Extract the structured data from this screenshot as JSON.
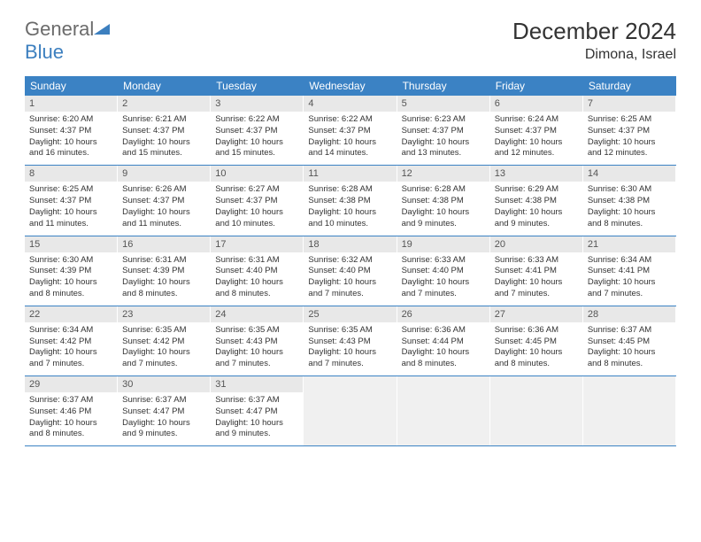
{
  "logo": {
    "part1": "General",
    "part2": "Blue"
  },
  "title": "December 2024",
  "location": "Dimona, Israel",
  "colors": {
    "header_bg": "#3b82c4",
    "header_text": "#ffffff",
    "daynum_bg": "#e8e8e8",
    "row_border": "#3b82c4",
    "text": "#333333",
    "logo_gray": "#6b6b6b",
    "logo_blue": "#3c7fbf"
  },
  "days_of_week": [
    "Sunday",
    "Monday",
    "Tuesday",
    "Wednesday",
    "Thursday",
    "Friday",
    "Saturday"
  ],
  "weeks": [
    [
      {
        "n": "1",
        "sr": "Sunrise: 6:20 AM",
        "ss": "Sunset: 4:37 PM",
        "d1": "Daylight: 10 hours",
        "d2": "and 16 minutes."
      },
      {
        "n": "2",
        "sr": "Sunrise: 6:21 AM",
        "ss": "Sunset: 4:37 PM",
        "d1": "Daylight: 10 hours",
        "d2": "and 15 minutes."
      },
      {
        "n": "3",
        "sr": "Sunrise: 6:22 AM",
        "ss": "Sunset: 4:37 PM",
        "d1": "Daylight: 10 hours",
        "d2": "and 15 minutes."
      },
      {
        "n": "4",
        "sr": "Sunrise: 6:22 AM",
        "ss": "Sunset: 4:37 PM",
        "d1": "Daylight: 10 hours",
        "d2": "and 14 minutes."
      },
      {
        "n": "5",
        "sr": "Sunrise: 6:23 AM",
        "ss": "Sunset: 4:37 PM",
        "d1": "Daylight: 10 hours",
        "d2": "and 13 minutes."
      },
      {
        "n": "6",
        "sr": "Sunrise: 6:24 AM",
        "ss": "Sunset: 4:37 PM",
        "d1": "Daylight: 10 hours",
        "d2": "and 12 minutes."
      },
      {
        "n": "7",
        "sr": "Sunrise: 6:25 AM",
        "ss": "Sunset: 4:37 PM",
        "d1": "Daylight: 10 hours",
        "d2": "and 12 minutes."
      }
    ],
    [
      {
        "n": "8",
        "sr": "Sunrise: 6:25 AM",
        "ss": "Sunset: 4:37 PM",
        "d1": "Daylight: 10 hours",
        "d2": "and 11 minutes."
      },
      {
        "n": "9",
        "sr": "Sunrise: 6:26 AM",
        "ss": "Sunset: 4:37 PM",
        "d1": "Daylight: 10 hours",
        "d2": "and 11 minutes."
      },
      {
        "n": "10",
        "sr": "Sunrise: 6:27 AM",
        "ss": "Sunset: 4:37 PM",
        "d1": "Daylight: 10 hours",
        "d2": "and 10 minutes."
      },
      {
        "n": "11",
        "sr": "Sunrise: 6:28 AM",
        "ss": "Sunset: 4:38 PM",
        "d1": "Daylight: 10 hours",
        "d2": "and 10 minutes."
      },
      {
        "n": "12",
        "sr": "Sunrise: 6:28 AM",
        "ss": "Sunset: 4:38 PM",
        "d1": "Daylight: 10 hours",
        "d2": "and 9 minutes."
      },
      {
        "n": "13",
        "sr": "Sunrise: 6:29 AM",
        "ss": "Sunset: 4:38 PM",
        "d1": "Daylight: 10 hours",
        "d2": "and 9 minutes."
      },
      {
        "n": "14",
        "sr": "Sunrise: 6:30 AM",
        "ss": "Sunset: 4:38 PM",
        "d1": "Daylight: 10 hours",
        "d2": "and 8 minutes."
      }
    ],
    [
      {
        "n": "15",
        "sr": "Sunrise: 6:30 AM",
        "ss": "Sunset: 4:39 PM",
        "d1": "Daylight: 10 hours",
        "d2": "and 8 minutes."
      },
      {
        "n": "16",
        "sr": "Sunrise: 6:31 AM",
        "ss": "Sunset: 4:39 PM",
        "d1": "Daylight: 10 hours",
        "d2": "and 8 minutes."
      },
      {
        "n": "17",
        "sr": "Sunrise: 6:31 AM",
        "ss": "Sunset: 4:40 PM",
        "d1": "Daylight: 10 hours",
        "d2": "and 8 minutes."
      },
      {
        "n": "18",
        "sr": "Sunrise: 6:32 AM",
        "ss": "Sunset: 4:40 PM",
        "d1": "Daylight: 10 hours",
        "d2": "and 7 minutes."
      },
      {
        "n": "19",
        "sr": "Sunrise: 6:33 AM",
        "ss": "Sunset: 4:40 PM",
        "d1": "Daylight: 10 hours",
        "d2": "and 7 minutes."
      },
      {
        "n": "20",
        "sr": "Sunrise: 6:33 AM",
        "ss": "Sunset: 4:41 PM",
        "d1": "Daylight: 10 hours",
        "d2": "and 7 minutes."
      },
      {
        "n": "21",
        "sr": "Sunrise: 6:34 AM",
        "ss": "Sunset: 4:41 PM",
        "d1": "Daylight: 10 hours",
        "d2": "and 7 minutes."
      }
    ],
    [
      {
        "n": "22",
        "sr": "Sunrise: 6:34 AM",
        "ss": "Sunset: 4:42 PM",
        "d1": "Daylight: 10 hours",
        "d2": "and 7 minutes."
      },
      {
        "n": "23",
        "sr": "Sunrise: 6:35 AM",
        "ss": "Sunset: 4:42 PM",
        "d1": "Daylight: 10 hours",
        "d2": "and 7 minutes."
      },
      {
        "n": "24",
        "sr": "Sunrise: 6:35 AM",
        "ss": "Sunset: 4:43 PM",
        "d1": "Daylight: 10 hours",
        "d2": "and 7 minutes."
      },
      {
        "n": "25",
        "sr": "Sunrise: 6:35 AM",
        "ss": "Sunset: 4:43 PM",
        "d1": "Daylight: 10 hours",
        "d2": "and 7 minutes."
      },
      {
        "n": "26",
        "sr": "Sunrise: 6:36 AM",
        "ss": "Sunset: 4:44 PM",
        "d1": "Daylight: 10 hours",
        "d2": "and 8 minutes."
      },
      {
        "n": "27",
        "sr": "Sunrise: 6:36 AM",
        "ss": "Sunset: 4:45 PM",
        "d1": "Daylight: 10 hours",
        "d2": "and 8 minutes."
      },
      {
        "n": "28",
        "sr": "Sunrise: 6:37 AM",
        "ss": "Sunset: 4:45 PM",
        "d1": "Daylight: 10 hours",
        "d2": "and 8 minutes."
      }
    ],
    [
      {
        "n": "29",
        "sr": "Sunrise: 6:37 AM",
        "ss": "Sunset: 4:46 PM",
        "d1": "Daylight: 10 hours",
        "d2": "and 8 minutes."
      },
      {
        "n": "30",
        "sr": "Sunrise: 6:37 AM",
        "ss": "Sunset: 4:47 PM",
        "d1": "Daylight: 10 hours",
        "d2": "and 9 minutes."
      },
      {
        "n": "31",
        "sr": "Sunrise: 6:37 AM",
        "ss": "Sunset: 4:47 PM",
        "d1": "Daylight: 10 hours",
        "d2": "and 9 minutes."
      },
      null,
      null,
      null,
      null
    ]
  ]
}
